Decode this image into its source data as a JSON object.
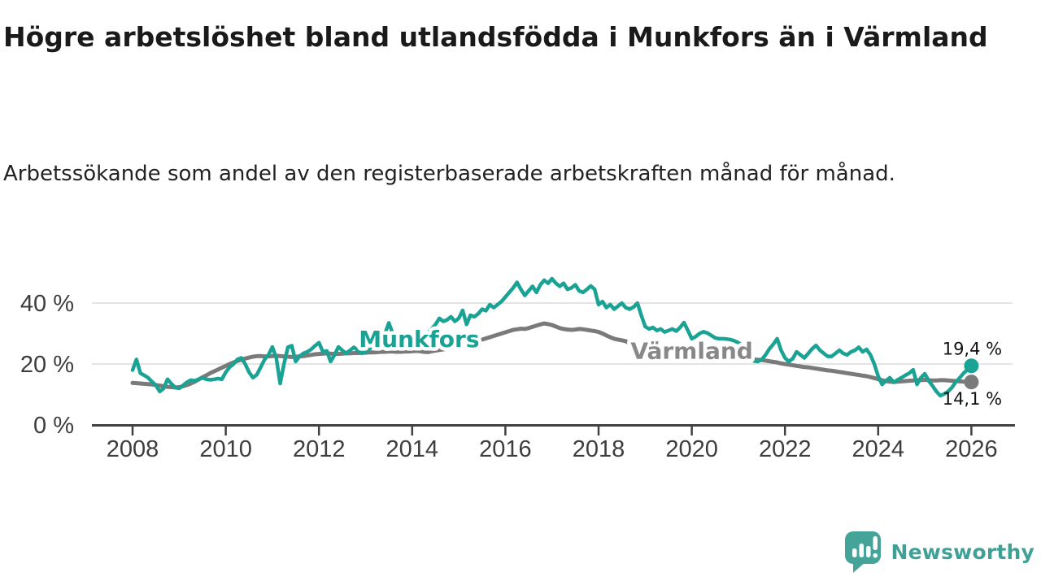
{
  "title": "Högre arbetslöshet bland utlandsfödda i Munkfors än i Värmland",
  "subtitle": "Arbetssökande som andel av den registerbaserade arbetskraften månad för månad.",
  "branding": {
    "logo_text": "Newsworthy",
    "logo_icon": "newsworthy-speech-bubble-bar-chart-icon",
    "logo_color": "#45a49a"
  },
  "chart_data": {
    "type": "line",
    "title": "Högre arbetslöshet bland utlandsfödda i Munkfors än i Värmland",
    "subtitle": "Arbetssökande som andel av den registerbaserade arbetskraften månad för månad.",
    "x_start_year": 2008,
    "points_per_year": 12,
    "x_axis_ticks": [
      2008,
      2010,
      2012,
      2014,
      2016,
      2018,
      2020,
      2022,
      2024,
      2026
    ],
    "y_axis": {
      "unit": "%",
      "ticks": [
        {
          "value": 0,
          "label": "0 %"
        },
        {
          "value": 20,
          "label": "20 %"
        },
        {
          "value": 40,
          "label": "40 %"
        }
      ],
      "range": [
        0,
        50
      ],
      "gridlines": true
    },
    "legend_position": "inline-labels",
    "series": [
      {
        "name": "Munkfors",
        "color": "#1aa394",
        "end_value": 19.4,
        "end_label": "19,4 %",
        "label_position": {
          "year": 2014.15,
          "value": 28.3
        },
        "values": [
          18,
          21.5,
          17,
          16.3,
          15.5,
          14.2,
          13,
          11,
          12,
          15,
          13.5,
          12.3,
          12,
          13,
          14,
          14.7,
          14.5,
          15,
          15.5,
          15,
          14.8,
          15,
          15.2,
          15,
          17.3,
          19,
          20,
          21.5,
          22,
          20,
          17.3,
          15.5,
          16.5,
          19,
          21.5,
          23,
          25.6,
          22,
          13.6,
          20,
          25.5,
          26,
          20.8,
          22.5,
          23.5,
          24,
          24.8,
          26,
          27,
          24,
          24.3,
          20.8,
          23,
          25.6,
          24.5,
          23.5,
          24.5,
          25.5,
          24.5,
          23.5,
          24,
          25,
          26,
          27,
          28,
          30,
          33.5,
          30,
          28,
          27,
          26.5,
          27,
          27.5,
          28,
          28.5,
          29,
          30,
          31.5,
          33,
          35,
          34,
          34.5,
          35.5,
          34,
          35,
          37.6,
          33,
          36,
          35.5,
          36.5,
          38,
          37.5,
          39.5,
          38.5,
          39.5,
          40.5,
          42,
          43.5,
          45,
          46.8,
          44.5,
          42.5,
          44,
          45.5,
          43.5,
          46,
          47.5,
          46.5,
          48,
          46.5,
          45.5,
          46.5,
          44.5,
          45,
          46,
          44,
          43.5,
          44.5,
          45.6,
          44.5,
          39.5,
          40.5,
          38.5,
          39.5,
          38,
          39,
          40,
          38.5,
          38,
          38.7,
          40,
          36,
          32.3,
          31.5,
          32,
          31,
          31.5,
          30.5,
          31,
          31.5,
          30.8,
          32,
          33.6,
          31,
          28.3,
          29,
          30,
          30.6,
          30.2,
          29.4,
          28.6,
          28.3,
          28.3,
          28.2,
          28,
          27.6,
          27,
          26,
          24.5,
          22.5,
          21,
          20.8,
          21.5,
          23,
          25,
          26.5,
          28.3,
          24.5,
          22,
          20.8,
          21.8,
          24,
          23,
          22,
          23.5,
          25,
          26.1,
          24.5,
          23.5,
          22.5,
          22.5,
          23.5,
          24.5,
          23.5,
          23,
          24,
          24.5,
          25.5,
          24,
          24.8,
          23,
          20,
          16,
          13.3,
          14.5,
          15.5,
          14,
          14.8,
          15.5,
          16.3,
          17,
          18.1,
          13.3,
          15.5,
          16.8,
          14.5,
          12.8,
          11,
          9.6,
          10.2,
          11,
          12.3,
          14.1,
          15.5,
          17,
          18.2,
          19.4
        ]
      },
      {
        "name": "Värmland",
        "color": "#7a7a7a",
        "label_color": "#888888",
        "end_value": 14.1,
        "end_label": "14,1 %",
        "label_position": {
          "year": 2020.0,
          "value": 24.4
        },
        "values": [
          13.8,
          13.7,
          13.6,
          13.5,
          13.4,
          13.3,
          13.1,
          12.9,
          12.7,
          12.5,
          12.4,
          12.3,
          12.4,
          12.7,
          13.1,
          13.6,
          14.2,
          14.9,
          15.6,
          16.3,
          17,
          17.6,
          18.2,
          18.8,
          19.4,
          20,
          20.5,
          21,
          21.4,
          21.8,
          22.1,
          22.4,
          22.6,
          22.6,
          22.5,
          22.5,
          22.6,
          22.7,
          22.6,
          22.5,
          22.4,
          22.3,
          22.4,
          22.5,
          22.6,
          22.8,
          23,
          23.2,
          23.3,
          23.4,
          23.5,
          23.4,
          23.3,
          23.3,
          23.4,
          23.5,
          23.5,
          23.6,
          23.6,
          23.7,
          23.7,
          23.8,
          23.8,
          23.9,
          24,
          24,
          24.1,
          24.1,
          24,
          24,
          24.1,
          24.1,
          24.2,
          24.3,
          24.2,
          24,
          23.9,
          24.2,
          24.4,
          24.6,
          24.8,
          25,
          25.3,
          25.6,
          26.2,
          26.6,
          27,
          27.2,
          27.5,
          27.7,
          28,
          28.4,
          28.8,
          29.2,
          29.6,
          30,
          30.4,
          30.8,
          31.2,
          31.4,
          31.6,
          31.5,
          31.8,
          32.2,
          32.6,
          33,
          33.3,
          33.1,
          32.8,
          32.3,
          31.8,
          31.5,
          31.3,
          31.2,
          31.3,
          31.5,
          31.4,
          31.2,
          31,
          30.8,
          30.5,
          30,
          29.4,
          28.8,
          28.3,
          28,
          27.8,
          27.5,
          26.8,
          26.2,
          25.8,
          25.6,
          25.3,
          25.1,
          24.9,
          24.7,
          24.5,
          24.3,
          24.2,
          24,
          23.9,
          23.8,
          23.7,
          23.6,
          23.5,
          23.4,
          23.3,
          23.2,
          23.1,
          23,
          22.9,
          22.8,
          22.7,
          22.5,
          22.3,
          22.1,
          21.9,
          21.8,
          21.7,
          21.6,
          21.5,
          21.4,
          21.3,
          21.1,
          20.9,
          20.7,
          20.5,
          20.2,
          20,
          19.8,
          19.6,
          19.4,
          19.2,
          19,
          18.9,
          18.7,
          18.5,
          18.3,
          18.1,
          17.9,
          17.8,
          17.6,
          17.4,
          17.2,
          17,
          16.8,
          16.6,
          16.4,
          16.2,
          16,
          15.7,
          15.4,
          15,
          14.7,
          14.4,
          14.2,
          14.1,
          14.2,
          14.3,
          14.4,
          14.5,
          14.6,
          14.7,
          14.7,
          14.8,
          14.7,
          14.6,
          14.6,
          14.7,
          14.7,
          14.6,
          14.5,
          14.4,
          14.3,
          14.2,
          14.1,
          14.1
        ]
      }
    ]
  }
}
